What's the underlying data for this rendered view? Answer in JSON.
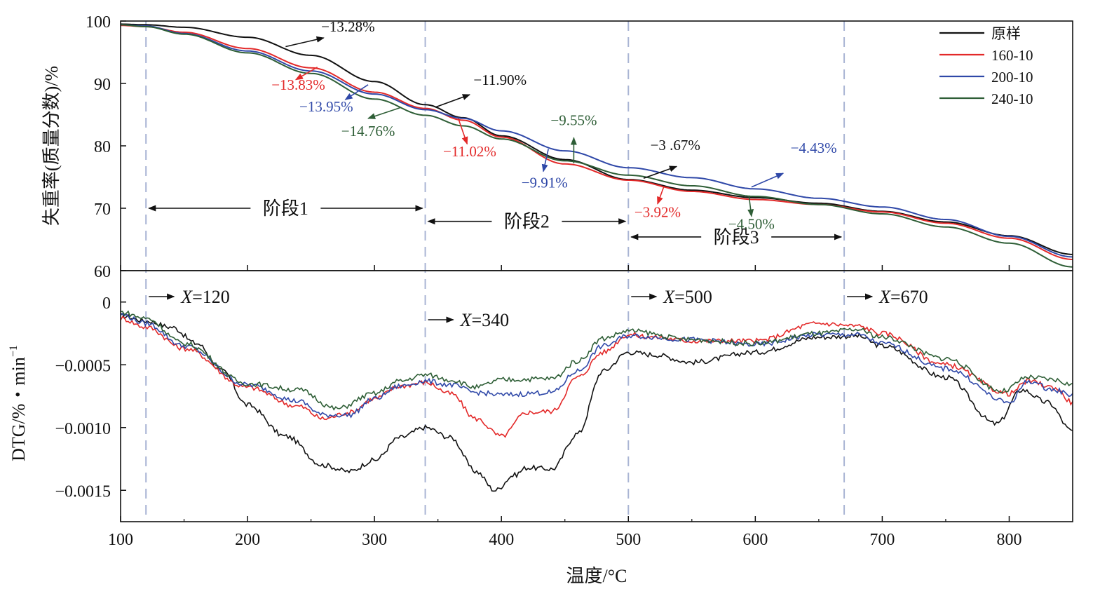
{
  "chart_data": {
    "type": "line",
    "x_label": "温度/°C",
    "x_range": [
      100,
      850
    ],
    "x_ticks": [
      "100",
      "200",
      "300",
      "400",
      "500",
      "600",
      "700",
      "800"
    ],
    "series_names": [
      "原样",
      "160-10",
      "200-10",
      "240-10"
    ],
    "colors": {
      "原样": "#111111",
      "160-10": "#e32929",
      "200-10": "#2f48a8",
      "240-10": "#2e5e36"
    },
    "tg": {
      "y_label": "失重率(质量分数)/%",
      "y_range": [
        60,
        100
      ],
      "y_ticks": [
        "60",
        "70",
        "80",
        "90",
        "100"
      ],
      "series": [
        {
          "name": "原样",
          "points": [
            [
              100,
              99.5
            ],
            [
              120,
              99.4
            ],
            [
              150,
              99.0
            ],
            [
              200,
              97.4
            ],
            [
              250,
              94.5
            ],
            [
              300,
              90.3
            ],
            [
              340,
              86.6
            ],
            [
              370,
              84.5
            ],
            [
              400,
              81.6
            ],
            [
              450,
              77.8
            ],
            [
              500,
              74.6
            ],
            [
              550,
              72.9
            ],
            [
              600,
              71.7
            ],
            [
              650,
              70.8
            ],
            [
              700,
              69.5
            ],
            [
              750,
              67.8
            ],
            [
              800,
              65.6
            ],
            [
              850,
              62.6
            ]
          ]
        },
        {
          "name": "160-10",
          "points": [
            [
              100,
              99.3
            ],
            [
              120,
              99.1
            ],
            [
              150,
              98.2
            ],
            [
              200,
              95.6
            ],
            [
              250,
              92.5
            ],
            [
              300,
              88.6
            ],
            [
              340,
              86.0
            ],
            [
              370,
              84.1
            ],
            [
              400,
              81.4
            ],
            [
              450,
              77.1
            ],
            [
              500,
              74.5
            ],
            [
              550,
              72.7
            ],
            [
              600,
              71.4
            ],
            [
              650,
              70.6
            ],
            [
              700,
              69.4
            ],
            [
              750,
              67.6
            ],
            [
              800,
              65.2
            ],
            [
              850,
              61.8
            ]
          ]
        },
        {
          "name": "200-10",
          "points": [
            [
              100,
              99.4
            ],
            [
              120,
              99.2
            ],
            [
              150,
              98.0
            ],
            [
              200,
              95.2
            ],
            [
              250,
              92.0
            ],
            [
              300,
              88.3
            ],
            [
              340,
              85.8
            ],
            [
              370,
              84.4
            ],
            [
              400,
              82.4
            ],
            [
              450,
              79.2
            ],
            [
              500,
              76.5
            ],
            [
              550,
              74.9
            ],
            [
              600,
              73.1
            ],
            [
              650,
              71.6
            ],
            [
              700,
              70.2
            ],
            [
              750,
              68.2
            ],
            [
              800,
              65.5
            ],
            [
              850,
              62.2
            ]
          ]
        },
        {
          "name": "240-10",
          "points": [
            [
              100,
              99.4
            ],
            [
              120,
              99.1
            ],
            [
              150,
              97.9
            ],
            [
              200,
              94.9
            ],
            [
              250,
              91.6
            ],
            [
              300,
              87.5
            ],
            [
              340,
              84.9
            ],
            [
              370,
              83.2
            ],
            [
              400,
              81.1
            ],
            [
              450,
              77.6
            ],
            [
              500,
              75.3
            ],
            [
              550,
              73.6
            ],
            [
              600,
              71.9
            ],
            [
              650,
              70.6
            ],
            [
              700,
              69.1
            ],
            [
              750,
              67.0
            ],
            [
              800,
              64.4
            ],
            [
              850,
              60.6
            ]
          ]
        }
      ]
    },
    "dtg": {
      "y_label": "DTG/%・min",
      "y_label_sup": "−1",
      "y_range": [
        -0.00175,
        0.00025
      ],
      "y_ticks": [
        {
          "v": 0,
          "label": "0"
        },
        {
          "v": -0.0005,
          "label": "−0.0005"
        },
        {
          "v": -0.001,
          "label": "−0.0010"
        },
        {
          "v": -0.0015,
          "label": "−0.0015"
        }
      ],
      "series": [
        {
          "name": "原样",
          "points": [
            [
              100,
              -0.00011
            ],
            [
              120,
              -0.00015
            ],
            [
              140,
              -0.0002
            ],
            [
              160,
              -0.00033
            ],
            [
              180,
              -0.00055
            ],
            [
              200,
              -0.00082
            ],
            [
              230,
              -0.00107
            ],
            [
              260,
              -0.0013
            ],
            [
              280,
              -0.00135
            ],
            [
              300,
              -0.00126
            ],
            [
              320,
              -0.00108
            ],
            [
              340,
              -0.001
            ],
            [
              360,
              -0.00108
            ],
            [
              380,
              -0.00135
            ],
            [
              395,
              -0.0015
            ],
            [
              410,
              -0.00138
            ],
            [
              420,
              -0.00132
            ],
            [
              440,
              -0.00133
            ],
            [
              460,
              -0.00105
            ],
            [
              480,
              -0.00055
            ],
            [
              500,
              -0.0004
            ],
            [
              520,
              -0.00042
            ],
            [
              550,
              -0.00048
            ],
            [
              600,
              -0.0004
            ],
            [
              650,
              -0.00028
            ],
            [
              680,
              -0.00027
            ],
            [
              700,
              -0.00035
            ],
            [
              750,
              -0.0006
            ],
            [
              790,
              -0.00097
            ],
            [
              810,
              -0.0007
            ],
            [
              830,
              -0.0008
            ],
            [
              850,
              -0.00103
            ]
          ]
        },
        {
          "name": "160-10",
          "points": [
            [
              100,
              -0.00013
            ],
            [
              120,
              -0.0002
            ],
            [
              150,
              -0.00037
            ],
            [
              200,
              -0.00068
            ],
            [
              240,
              -0.00083
            ],
            [
              260,
              -0.00093
            ],
            [
              280,
              -0.00088
            ],
            [
              300,
              -0.00077
            ],
            [
              320,
              -0.00067
            ],
            [
              340,
              -0.00064
            ],
            [
              360,
              -0.00073
            ],
            [
              380,
              -0.00093
            ],
            [
              400,
              -0.00107
            ],
            [
              420,
              -0.00088
            ],
            [
              440,
              -0.00087
            ],
            [
              460,
              -0.0006
            ],
            [
              480,
              -0.0004
            ],
            [
              500,
              -0.00026
            ],
            [
              520,
              -0.00028
            ],
            [
              550,
              -0.00031
            ],
            [
              600,
              -0.00031
            ],
            [
              650,
              -0.00017
            ],
            [
              680,
              -0.00019
            ],
            [
              700,
              -0.00025
            ],
            [
              750,
              -0.0005
            ],
            [
              800,
              -0.00073
            ],
            [
              815,
              -0.00063
            ],
            [
              835,
              -0.00068
            ],
            [
              850,
              -0.0008
            ]
          ]
        },
        {
          "name": "200-10",
          "points": [
            [
              100,
              -0.0001
            ],
            [
              120,
              -0.00017
            ],
            [
              150,
              -0.00035
            ],
            [
              200,
              -0.00066
            ],
            [
              240,
              -0.00079
            ],
            [
              260,
              -0.0009
            ],
            [
              280,
              -0.0009
            ],
            [
              300,
              -0.00077
            ],
            [
              320,
              -0.00067
            ],
            [
              340,
              -0.00063
            ],
            [
              360,
              -0.00066
            ],
            [
              380,
              -0.00072
            ],
            [
              400,
              -0.00074
            ],
            [
              440,
              -0.00072
            ],
            [
              460,
              -0.00055
            ],
            [
              480,
              -0.00035
            ],
            [
              500,
              -0.00027
            ],
            [
              550,
              -0.0003
            ],
            [
              600,
              -0.00034
            ],
            [
              650,
              -0.00026
            ],
            [
              680,
              -0.00026
            ],
            [
              700,
              -0.00033
            ],
            [
              750,
              -0.00053
            ],
            [
              800,
              -0.0008
            ],
            [
              815,
              -0.00063
            ],
            [
              835,
              -0.0007
            ],
            [
              850,
              -0.00074
            ]
          ]
        },
        {
          "name": "240-10",
          "points": [
            [
              100,
              -8e-05
            ],
            [
              120,
              -0.00013
            ],
            [
              150,
              -0.00033
            ],
            [
              200,
              -0.00065
            ],
            [
              240,
              -0.0007
            ],
            [
              270,
              -0.00085
            ],
            [
              300,
              -0.00073
            ],
            [
              320,
              -0.00063
            ],
            [
              340,
              -0.00058
            ],
            [
              360,
              -0.00062
            ],
            [
              380,
              -0.00068
            ],
            [
              400,
              -0.00062
            ],
            [
              440,
              -0.00061
            ],
            [
              460,
              -0.00047
            ],
            [
              480,
              -0.00029
            ],
            [
              500,
              -0.00023
            ],
            [
              550,
              -0.0003
            ],
            [
              600,
              -0.00033
            ],
            [
              650,
              -0.00025
            ],
            [
              680,
              -0.00022
            ],
            [
              700,
              -0.00028
            ],
            [
              750,
              -0.00045
            ],
            [
              795,
              -0.00071
            ],
            [
              815,
              -0.0006
            ],
            [
              835,
              -0.00062
            ],
            [
              850,
              -0.00066
            ]
          ]
        }
      ]
    },
    "vlines": [
      120,
      340,
      500,
      670
    ],
    "x_markers": [
      {
        "x": 120,
        "letter": "X",
        "value": "=120",
        "row": "top"
      },
      {
        "x": 340,
        "letter": "X",
        "value": "=340",
        "row": "low"
      },
      {
        "x": 500,
        "letter": "X",
        "value": "=500",
        "row": "top"
      },
      {
        "x": 670,
        "letter": "X",
        "value": "=670",
        "row": "top"
      }
    ],
    "stages": [
      {
        "label": "阶段1",
        "from": 120,
        "to": 340,
        "y": 70
      },
      {
        "label": "阶段2",
        "from": 340,
        "to": 500,
        "y": 67.9
      },
      {
        "label": "阶段3",
        "from": 500,
        "to": 670,
        "y": 65.4
      }
    ],
    "annotations": [
      {
        "text": "−13.28%",
        "series": "原样",
        "ax": 230,
        "ay": 95.9,
        "tx": 260,
        "ty": 97.3,
        "lx": 258,
        "ly": 98.3,
        "anchor": "start"
      },
      {
        "text": "−13.83%",
        "series": "160-10",
        "ax": 255,
        "ay": 92.6,
        "tx": 238,
        "ty": 90.6,
        "lx": 240,
        "ly": 89.0,
        "anchor": "middle"
      },
      {
        "text": "−13.95%",
        "series": "200-10",
        "ax": 295,
        "ay": 89.8,
        "tx": 277,
        "ty": 87.4,
        "lx": 262,
        "ly": 85.5,
        "anchor": "middle"
      },
      {
        "text": "−14.76%",
        "series": "240-10",
        "ax": 320,
        "ay": 86.1,
        "tx": 295,
        "ty": 84.4,
        "lx": 295,
        "ly": 81.6,
        "anchor": "middle"
      },
      {
        "text": "−11.90%",
        "series": "原样",
        "ax": 348,
        "ay": 86.2,
        "tx": 375,
        "ty": 88.2,
        "lx": 378,
        "ly": 89.8,
        "anchor": "start"
      },
      {
        "text": "−11.02%",
        "series": "160-10",
        "ax": 366,
        "ay": 84.4,
        "tx": 373,
        "ty": 80.3,
        "lx": 375,
        "ly": 78.3,
        "anchor": "middle"
      },
      {
        "text": "−9.91%",
        "series": "200-10",
        "ax": 437,
        "ay": 79.5,
        "tx": 433,
        "ty": 75.9,
        "lx": 434,
        "ly": 73.3,
        "anchor": "middle"
      },
      {
        "text": "−9.55%",
        "series": "240-10",
        "ax": 457,
        "ay": 77.2,
        "tx": 457,
        "ty": 81.3,
        "lx": 457,
        "ly": 83.3,
        "anchor": "middle"
      },
      {
        "text": "−3 .67%",
        "series": "原样",
        "ax": 512,
        "ay": 74.8,
        "tx": 538,
        "ty": 76.7,
        "lx": 537,
        "ly": 79.3,
        "anchor": "middle"
      },
      {
        "text": "−3.92%",
        "series": "160-10",
        "ax": 528,
        "ay": 73.5,
        "tx": 523,
        "ty": 70.7,
        "lx": 523,
        "ly": 68.6,
        "anchor": "middle"
      },
      {
        "text": "−4.43%",
        "series": "200-10",
        "ax": 597,
        "ay": 73.4,
        "tx": 622,
        "ty": 75.6,
        "lx": 646,
        "ly": 78.9,
        "anchor": "middle"
      },
      {
        "text": "−4.50%",
        "series": "240-10",
        "ax": 595,
        "ay": 72.0,
        "tx": 597,
        "ty": 68.7,
        "lx": 597,
        "ly": 66.7,
        "anchor": "middle"
      }
    ]
  }
}
